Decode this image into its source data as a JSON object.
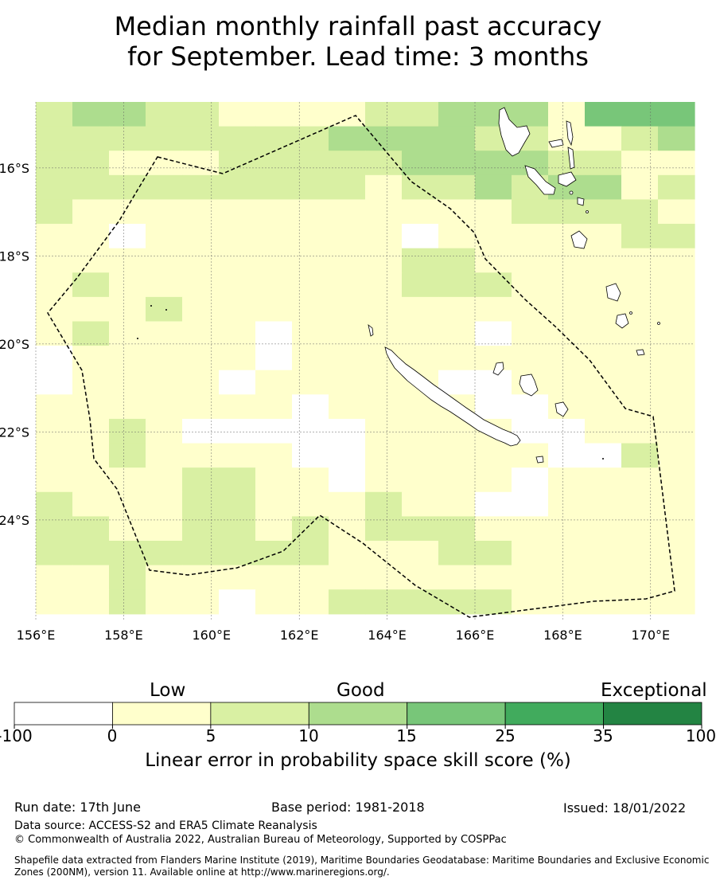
{
  "title_line1": "Median monthly rainfall past accuracy",
  "title_line2": "for September. Lead time: 3 months",
  "map": {
    "lon_range": [
      156,
      171
    ],
    "lat_range": [
      -26.3,
      -14.5
    ],
    "lon_labels": [
      "156°E",
      "158°E",
      "160°E",
      "162°E",
      "164°E",
      "166°E",
      "168°E",
      "170°E"
    ],
    "lat_labels": [
      "16°S",
      "18°S",
      "20°S",
      "22°S",
      "24°S"
    ],
    "legend_colors": [
      "#ffffff",
      "#ffffcc",
      "#d9f0a3",
      "#addd8e",
      "#78c679",
      "#41ab5d",
      "#238443"
    ],
    "gridline_color": "#666666",
    "boundary_style": "dashed"
  },
  "colorbar": {
    "categories": [
      "Low",
      "Good",
      "Exceptional"
    ],
    "ticks": [
      "-100",
      "0",
      "5",
      "10",
      "15",
      "25",
      "35",
      "100"
    ],
    "label": "Linear error in probability space skill score (%)"
  },
  "footer": {
    "run_date": "Run date: 17th June",
    "base_period": "Base period: 1981-2018",
    "issued": "Issued: 18/01/2022",
    "data_source": "Data source: ACCESS-S2 and ERA5 Climate Reanalysis",
    "copyright": "© Commonwealth of Australia 2022, Australian Bureau of Meteorology, Supported by COSPPac",
    "shapefile": "Shapefile data extracted from Flanders Marine Institute (2019), Maritime Boundaries Geodatabase: Maritime Boundaries and Exclusive Economic Zones (200NM), version 11. Available online at http://www.marineregions.org/."
  }
}
